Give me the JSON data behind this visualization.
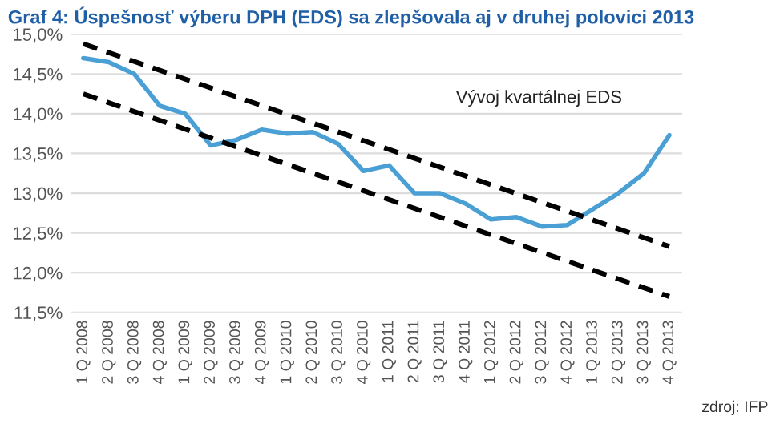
{
  "chart_data": {
    "type": "line",
    "title": "Graf 4: Úspešnosť výberu DPH (EDS) sa zlepšovala aj v druhej polovici 2013",
    "categories": [
      "1 Q 2008",
      "2 Q 2008",
      "3 Q 2008",
      "4 Q 2008",
      "1 Q 2009",
      "2 Q 2009",
      "3 Q 2009",
      "4 Q 2009",
      "1 Q 2010",
      "2 Q 2010",
      "3 Q 2010",
      "4 Q 2010",
      "1 Q 2011",
      "2 Q 2011",
      "3 Q 2011",
      "4 Q 2011",
      "1 Q 2012",
      "2 Q 2012",
      "3 Q 2012",
      "4 Q 2012",
      "1 Q 2013",
      "2 Q 2013",
      "3 Q 2013",
      "4 Q 2013"
    ],
    "series": [
      {
        "color": "#4a9fd4",
        "line_style": "solid",
        "values": [
          14.7,
          14.65,
          14.5,
          14.1,
          14.0,
          13.6,
          13.67,
          13.8,
          13.75,
          13.77,
          13.62,
          13.28,
          13.35,
          13.0,
          13.0,
          12.87,
          12.67,
          12.7,
          12.58,
          12.6,
          12.8,
          13.0,
          13.25,
          13.73
        ]
      },
      {
        "color": "#000000",
        "line_style": "dashed",
        "values": [
          14.88,
          null,
          null,
          null,
          null,
          null,
          null,
          null,
          null,
          null,
          null,
          null,
          null,
          null,
          null,
          null,
          null,
          null,
          null,
          null,
          null,
          null,
          null,
          12.33
        ]
      },
      {
        "color": "#000000",
        "line_style": "dashed",
        "values": [
          14.25,
          null,
          null,
          null,
          null,
          null,
          null,
          null,
          null,
          null,
          null,
          null,
          null,
          null,
          null,
          null,
          null,
          null,
          null,
          null,
          null,
          null,
          null,
          11.7
        ]
      }
    ],
    "ylim": [
      11.5,
      15.0
    ],
    "yticks": [
      {
        "value": 11.5,
        "label": "11,5%"
      },
      {
        "value": 12.0,
        "label": "12,0%"
      },
      {
        "value": 12.5,
        "label": "12,5%"
      },
      {
        "value": 13.0,
        "label": "13,0%"
      },
      {
        "value": 13.5,
        "label": "13,5%"
      },
      {
        "value": 14.0,
        "label": "14,0%"
      },
      {
        "value": 14.5,
        "label": "14,5%"
      },
      {
        "value": 15.0,
        "label": "15,0%"
      }
    ],
    "grid": "y",
    "marker": "none",
    "annotations": [
      "Vývoj kvartálnej EDS",
      "zdroj: IFP"
    ]
  }
}
